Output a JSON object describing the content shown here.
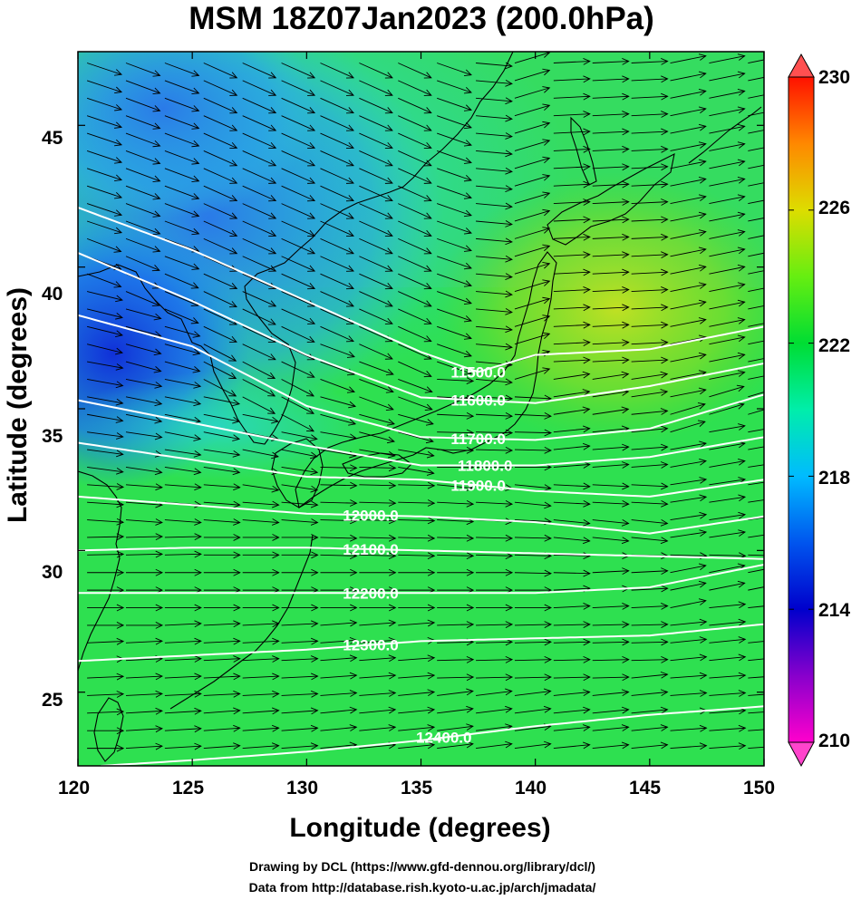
{
  "title": "MSM 18Z07Jan2023 (200.0hPa)",
  "xlabel": "Longitude (degrees)",
  "ylabel": "Latitude  (degrees)",
  "credits": [
    "Drawing by DCL (https://www.gfd-dennou.org/library/dcl/)",
    "Data from http://database.rish.kyoto-u.ac.jp/arch/jmadata/"
  ],
  "colors": {
    "frame": "#000000",
    "contour": "#ffffff",
    "vector": "#000000",
    "coast": "#000000"
  },
  "chart_data": {
    "type": "heatmap",
    "variable": "temperature (shaded), geopotential height (white contours), wind (arrows)",
    "xlim": [
      120,
      150
    ],
    "ylim": [
      22.4,
      47.6
    ],
    "xticks": [
      "120",
      "125",
      "130",
      "135",
      "140",
      "145",
      "150"
    ],
    "yticks": [
      "25",
      "30",
      "35",
      "40",
      "45"
    ],
    "colorbar": {
      "min": 210,
      "max": 230,
      "ticks": [
        "210",
        "214",
        "218",
        "222",
        "226",
        "230"
      ]
    },
    "contour_labels": [
      "11500.0",
      "11600.0",
      "11700.0",
      "11800.0",
      "11900.0",
      "12000.0",
      "12100.0",
      "12200.0",
      "12300.0",
      "12400.0"
    ],
    "contours": [
      {
        "level": 11500,
        "points": [
          [
            120,
            42.1
          ],
          [
            125,
            40.6
          ],
          [
            130,
            38.8
          ],
          [
            135,
            37.0
          ],
          [
            137.5,
            36.3
          ],
          [
            140,
            36.9
          ],
          [
            145,
            37.1
          ],
          [
            150,
            37.9
          ]
        ]
      },
      {
        "level": 11600,
        "points": [
          [
            120,
            40.5
          ],
          [
            125,
            38.8
          ],
          [
            130,
            36.9
          ],
          [
            135,
            35.4
          ],
          [
            140,
            35.2
          ],
          [
            145,
            35.8
          ],
          [
            150,
            36.6
          ]
        ]
      },
      {
        "level": 11700,
        "points": [
          [
            120,
            38.3
          ],
          [
            125,
            37.2
          ],
          [
            130,
            35.1
          ],
          [
            135,
            34.0
          ],
          [
            140,
            33.9
          ],
          [
            145,
            34.3
          ],
          [
            150,
            35.5
          ]
        ]
      },
      {
        "level": 11800,
        "points": [
          [
            120,
            35.3
          ],
          [
            125,
            34.5
          ],
          [
            130,
            33.7
          ],
          [
            135,
            33.0
          ],
          [
            140,
            33.0
          ],
          [
            145,
            33.3
          ],
          [
            150,
            34.0
          ]
        ]
      },
      {
        "level": 11900,
        "points": [
          [
            120,
            33.8
          ],
          [
            125,
            33.2
          ],
          [
            130,
            32.6
          ],
          [
            135,
            32.5
          ],
          [
            140,
            32.1
          ],
          [
            145,
            31.9
          ],
          [
            150,
            32.5
          ]
        ]
      },
      {
        "level": 12000,
        "points": [
          [
            120,
            31.9
          ],
          [
            125,
            31.6
          ],
          [
            130,
            31.3
          ],
          [
            135,
            31.2
          ],
          [
            140,
            31.0
          ],
          [
            145,
            30.6
          ],
          [
            150,
            31.2
          ]
        ]
      },
      {
        "level": 12100,
        "points": [
          [
            120,
            30.0
          ],
          [
            125,
            30.1
          ],
          [
            130,
            30.1
          ],
          [
            135,
            30.0
          ],
          [
            140,
            29.9
          ],
          [
            145,
            29.8
          ],
          [
            150,
            29.7
          ]
        ]
      },
      {
        "level": 12200,
        "points": [
          [
            120,
            28.5
          ],
          [
            125,
            28.5
          ],
          [
            130,
            28.5
          ],
          [
            135,
            28.5
          ],
          [
            140,
            28.5
          ],
          [
            145,
            28.7
          ],
          [
            150,
            29.5
          ]
        ]
      },
      {
        "level": 12300,
        "points": [
          [
            120,
            26.1
          ],
          [
            125,
            26.3
          ],
          [
            130,
            26.5
          ],
          [
            135,
            26.8
          ],
          [
            140,
            26.9
          ],
          [
            145,
            27.0
          ],
          [
            150,
            27.4
          ]
        ]
      },
      {
        "level": 12400,
        "points": [
          [
            121,
            22.4
          ],
          [
            125,
            22.6
          ],
          [
            130,
            22.9
          ],
          [
            135,
            23.3
          ],
          [
            140,
            23.8
          ],
          [
            145,
            24.2
          ],
          [
            150,
            24.5
          ]
        ]
      }
    ],
    "temperature_centers": [
      {
        "lon": 121.0,
        "lat": 37.0,
        "value": 214
      },
      {
        "lon": 124.0,
        "lat": 44.0,
        "value": 216
      },
      {
        "lon": 126.0,
        "lat": 35.0,
        "value": 217
      },
      {
        "lon": 134.0,
        "lat": 46.0,
        "value": 219
      },
      {
        "lon": 144.0,
        "lat": 38.5,
        "value": 225
      },
      {
        "lon": 138.0,
        "lat": 28.0,
        "value": 221
      }
    ]
  }
}
